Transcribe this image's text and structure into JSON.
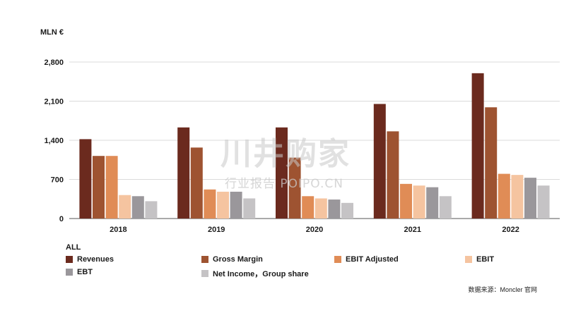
{
  "unit_label": "MLN €",
  "legend_header": "ALL",
  "source": "数据来源：Moncler 官网",
  "watermark": {
    "main": "川井购家",
    "sub": "行业报告 POIPO.CN"
  },
  "colors": {
    "Revenues": "#6b2a1e",
    "Gross Margin": "#9e5331",
    "EBIT Adjusted": "#e08c56",
    "EBIT": "#f5c4a0",
    "EBT": "#9a979b",
    "Net Income，Group share": "#c5c3c5"
  },
  "chart_data": {
    "type": "bar",
    "title": "",
    "xlabel": "",
    "ylabel": "MLN €",
    "ylim": [
      0,
      2800
    ],
    "yticks": [
      "0",
      "700",
      "1,400",
      "2,100",
      "2,800"
    ],
    "ytick_values": [
      0,
      700,
      1400,
      2100,
      2800
    ],
    "categories": [
      "2018",
      "2019",
      "2020",
      "2021",
      "2022"
    ],
    "series": [
      {
        "name": "Revenues",
        "values": [
          1420,
          1630,
          1630,
          2050,
          2600
        ]
      },
      {
        "name": "Gross Margin",
        "values": [
          1120,
          1270,
          1090,
          1560,
          1990
        ]
      },
      {
        "name": "EBIT Adjusted",
        "values": [
          1120,
          520,
          400,
          620,
          800
        ]
      },
      {
        "name": "EBIT",
        "values": [
          420,
          480,
          360,
          590,
          780
        ]
      },
      {
        "name": "EBT",
        "values": [
          400,
          480,
          340,
          560,
          730
        ]
      },
      {
        "name": "Net Income，Group share",
        "values": [
          310,
          360,
          280,
          400,
          590
        ]
      }
    ],
    "grid": true,
    "legend_position": "bottom"
  }
}
